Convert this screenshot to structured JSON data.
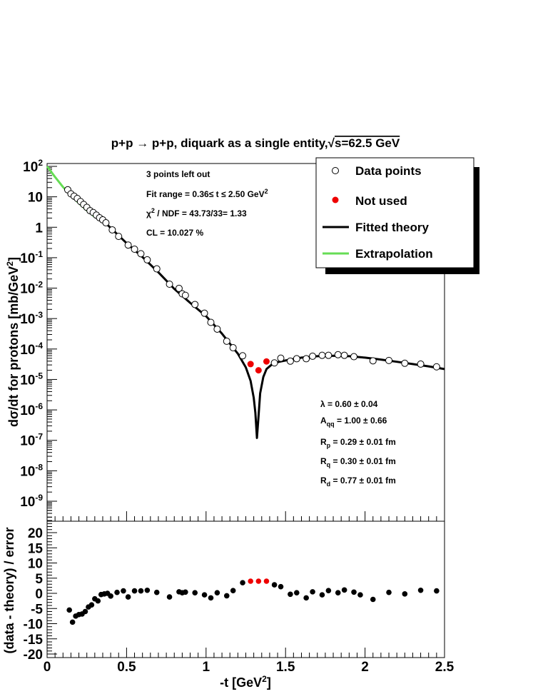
{
  "chart_data": [
    {
      "type": "scatter",
      "title_parts": [
        "p+p ",
        "→",
        " p+p, diquark as a single entity,",
        "√",
        "s=62.5 GeV"
      ],
      "xlim": [
        0,
        2.5
      ],
      "ylim": [
        1e-10,
        100
      ],
      "yscale": "log",
      "ylabel_parts": [
        "d",
        "σ",
        "/dt for protons [mb/GeV",
        "2",
        "]"
      ],
      "y_ticks": [
        {
          "value": 100,
          "base": "10",
          "exp": "2"
        },
        {
          "value": 10,
          "base": "10",
          "exp": ""
        },
        {
          "value": 1,
          "base": "1",
          "exp": ""
        },
        {
          "value": 0.1,
          "base": "10",
          "exp": "-1"
        },
        {
          "value": 0.01,
          "base": "10",
          "exp": "-2"
        },
        {
          "value": 0.001,
          "base": "10",
          "exp": "-3"
        },
        {
          "value": 0.0001,
          "base": "10",
          "exp": "-4"
        },
        {
          "value": 1e-05,
          "base": "10",
          "exp": "-5"
        },
        {
          "value": 1e-06,
          "base": "10",
          "exp": "-6"
        },
        {
          "value": 1e-07,
          "base": "10",
          "exp": "-7"
        },
        {
          "value": 1e-08,
          "base": "10",
          "exp": "-8"
        },
        {
          "value": 1e-09,
          "base": "10",
          "exp": "-9"
        }
      ],
      "series": [
        {
          "name": "Data points",
          "style": "open-circle",
          "x": [
            0.13,
            0.15,
            0.17,
            0.19,
            0.21,
            0.23,
            0.25,
            0.27,
            0.29,
            0.31,
            0.33,
            0.35,
            0.37,
            0.41,
            0.45,
            0.51,
            0.55,
            0.59,
            0.63,
            0.69,
            0.77,
            0.83,
            0.85,
            0.87,
            0.93,
            0.99,
            1.03,
            1.07,
            1.13,
            1.17,
            1.23,
            1.43,
            1.47,
            1.53,
            1.57,
            1.63,
            1.67,
            1.73,
            1.77,
            1.83,
            1.87,
            1.93,
            2.05,
            2.15,
            2.25,
            2.35,
            2.45
          ],
          "y": [
            17,
            12.5,
            10.5,
            8.8,
            7,
            5.6,
            4.5,
            3.5,
            3.05,
            2.5,
            2.05,
            1.75,
            1.4,
            0.82,
            0.5,
            0.26,
            0.19,
            0.135,
            0.085,
            0.043,
            0.0135,
            0.0098,
            0.0065,
            0.0058,
            0.0029,
            0.0015,
            0.00075,
            0.00045,
            0.00018,
            0.00011,
            6e-05,
            3.5e-05,
            5e-05,
            4e-05,
            4.8e-05,
            4.8e-05,
            5.8e-05,
            6.2e-05,
            6.2e-05,
            6.5e-05,
            6.2e-05,
            5.6e-05,
            4.1e-05,
            4.2e-05,
            3.4e-05,
            3.2e-05,
            2.6e-05
          ]
        },
        {
          "name": "Not used",
          "style": "filled-circle",
          "color": "#ee0000",
          "x": [
            1.28,
            1.33,
            1.38
          ],
          "y": [
            3.2e-05,
            2e-05,
            3.9e-05
          ]
        },
        {
          "name": "Fitted theory",
          "style": "line",
          "color": "#000000",
          "x": [
            0.36,
            0.4,
            0.5,
            0.6,
            0.7,
            0.8,
            0.9,
            1.0,
            1.1,
            1.2,
            1.25,
            1.28,
            1.3,
            1.31,
            1.32,
            1.33,
            1.34,
            1.36,
            1.38,
            1.42,
            1.46,
            1.5,
            1.6,
            1.7,
            1.8,
            1.9,
            2.0,
            2.1,
            2.2,
            2.3,
            2.4,
            2.5
          ],
          "y": [
            1.5,
            0.95,
            0.3,
            0.105,
            0.033,
            0.0095,
            0.0033,
            0.0012,
            0.00032,
            7e-05,
            2.5e-05,
            9e-06,
            2.5e-06,
            8e-07,
            1.2e-07,
            6e-07,
            3.5e-06,
            1.2e-05,
            2.2e-05,
            3.3e-05,
            3.8e-05,
            4.2e-05,
            5.2e-05,
            5.8e-05,
            6e-05,
            5.8e-05,
            5.2e-05,
            4.5e-05,
            3.8e-05,
            3.2e-05,
            2.7e-05,
            2.2e-05
          ]
        },
        {
          "name": "Extrapolation",
          "style": "line",
          "color": "#66dd55",
          "x": [
            0.0,
            0.05,
            0.1,
            0.15,
            0.2,
            0.25,
            0.3,
            0.36
          ],
          "y": [
            100,
            45,
            21,
            11,
            6.2,
            3.6,
            2.2,
            1.5
          ]
        }
      ],
      "info_box": {
        "line1": "3 points left out",
        "line2_parts": [
          "Fit range = 0.36",
          "≤",
          " t ",
          "≤",
          " 2.50 GeV",
          "2"
        ],
        "line3_parts": [
          "χ",
          "2",
          " / NDF = 43.73/33= 1.33"
        ],
        "line4": "CL = 10.027 %"
      },
      "params": [
        {
          "symbol": "λ",
          "sub": "",
          "value": " = 0.60 ",
          "pm": "±",
          "err": " 0.04"
        },
        {
          "symbol": "A",
          "sub": "qq",
          "value": " = 1.00 ",
          "pm": "±",
          "err": " 0.66"
        },
        {
          "symbol": "R",
          "sub": "p",
          "value": " = 0.29 ",
          "pm": "±",
          "err": " 0.01 fm"
        },
        {
          "symbol": "R",
          "sub": "q",
          "value": " = 0.30 ",
          "pm": "±",
          "err": " 0.01 fm"
        },
        {
          "symbol": "R",
          "sub": "d",
          "value": " = 0.77 ",
          "pm": "±",
          "err": " 0.01 fm"
        }
      ]
    },
    {
      "type": "scatter",
      "xlim": [
        0,
        2.5
      ],
      "ylim": [
        -20,
        25
      ],
      "ylabel": "(data - theory) / error",
      "y_ticks": [
        -20,
        -15,
        -10,
        -5,
        0,
        5,
        10,
        15,
        20
      ],
      "x_ticks": [
        {
          "value": 0,
          "label": "0"
        },
        {
          "value": 0.5,
          "label": "0.5"
        },
        {
          "value": 1,
          "label": "1"
        },
        {
          "value": 1.5,
          "label": "1.5"
        },
        {
          "value": 2,
          "label": "2"
        },
        {
          "value": 2.5,
          "label": "2.5"
        }
      ],
      "xlabel_parts": [
        "-t [GeV",
        "2",
        "]"
      ],
      "series": [
        {
          "name": "residuals",
          "color": "#000000",
          "x": [
            0.14,
            0.16,
            0.18,
            0.2,
            0.22,
            0.24,
            0.26,
            0.28,
            0.3,
            0.32,
            0.34,
            0.36,
            0.38,
            0.4,
            0.44,
            0.48,
            0.51,
            0.55,
            0.59,
            0.63,
            0.69,
            0.77,
            0.83,
            0.85,
            0.87,
            0.93,
            0.99,
            1.03,
            1.07,
            1.13,
            1.17,
            1.23,
            1.43,
            1.47,
            1.53,
            1.57,
            1.63,
            1.67,
            1.73,
            1.77,
            1.83,
            1.87,
            1.93,
            1.97,
            2.05,
            2.15,
            2.25,
            2.35,
            2.45
          ],
          "y": [
            -5.5,
            -9.5,
            -7.5,
            -7,
            -6.8,
            -6,
            -4.5,
            -3.8,
            -1.8,
            -2.5,
            -0.4,
            -0.2,
            0,
            -0.9,
            0.3,
            0.8,
            -1.2,
            0.8,
            0.8,
            1,
            0.3,
            -1.2,
            0.5,
            0.2,
            0.4,
            0.2,
            -0.5,
            -1.5,
            0.2,
            -0.8,
            0.9,
            3.5,
            2.8,
            2.2,
            -0.3,
            0.2,
            -1.5,
            0.5,
            -0.5,
            0.9,
            0.2,
            1.1,
            0.4,
            -0.5,
            -2,
            0.3,
            -0.2,
            1,
            0.8
          ]
        },
        {
          "name": "not-used-residuals",
          "color": "#ee0000",
          "x": [
            1.28,
            1.33,
            1.38
          ],
          "y": [
            4,
            4,
            4
          ]
        }
      ]
    }
  ],
  "legend": {
    "items": [
      {
        "label": "Data points",
        "marker": "open-circle"
      },
      {
        "label": "Not used",
        "marker": "filled-circle",
        "color": "#ee0000"
      },
      {
        "label": "Fitted theory",
        "marker": "line",
        "color": "#000000"
      },
      {
        "label": "Extrapolation",
        "marker": "line",
        "color": "#66dd55"
      }
    ]
  }
}
